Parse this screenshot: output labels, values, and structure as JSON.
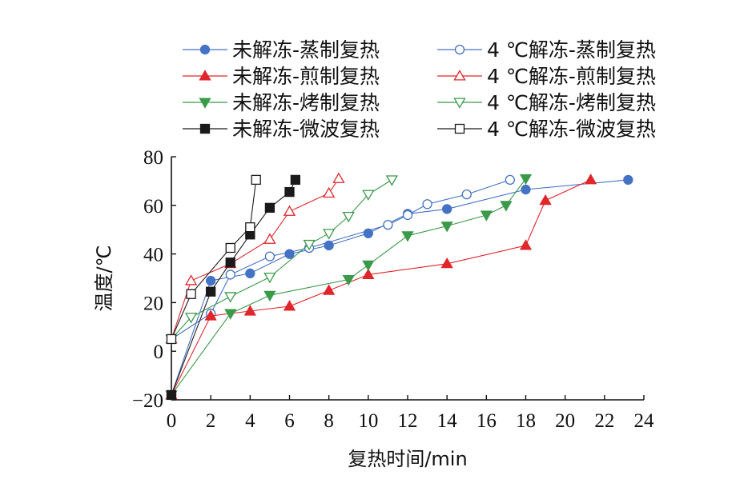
{
  "chart_data": {
    "type": "line",
    "title": "",
    "xlabel": "复热时间/min",
    "ylabel": "温度/℃",
    "xlim": [
      0,
      24
    ],
    "ylim": [
      -20,
      80
    ],
    "xticks": [
      0,
      2,
      4,
      6,
      8,
      10,
      12,
      14,
      16,
      18,
      20,
      22,
      24
    ],
    "yticks": [
      -20,
      0,
      20,
      40,
      60,
      80
    ],
    "ytick_labels": [
      "−20",
      "0",
      "20",
      "40",
      "60",
      "80"
    ],
    "grid": false,
    "legend_position": "top",
    "series": [
      {
        "name": "未解冻-蒸制复热",
        "color": "#4472c4",
        "marker": "circle",
        "filled": true,
        "x": [
          0,
          2,
          4,
          6,
          8,
          10,
          12,
          14,
          18,
          23.2
        ],
        "y": [
          -18,
          29,
          32,
          40,
          43.5,
          48.5,
          56.5,
          58.5,
          66.5,
          70.5
        ]
      },
      {
        "name": "4 ℃解冻-蒸制复热",
        "color": "#4472c4",
        "marker": "circle",
        "filled": false,
        "x": [
          0,
          2,
          3,
          5,
          7,
          11,
          12,
          13,
          15,
          17.2
        ],
        "y": [
          5,
          15.5,
          31.5,
          39,
          42.5,
          52,
          56,
          60.5,
          64.5,
          70.5
        ]
      },
      {
        "name": "未解冻-煎制复热",
        "color": "#e0262b",
        "marker": "triangle-up",
        "filled": true,
        "x": [
          0,
          2,
          4,
          6,
          8,
          10,
          14,
          18,
          19,
          21.3
        ],
        "y": [
          -18,
          14.5,
          16.5,
          18.5,
          25,
          31.5,
          36,
          43.5,
          62,
          70.5
        ]
      },
      {
        "name": "4 ℃解冻-煎制复热",
        "color": "#e0262b",
        "marker": "triangle-up",
        "filled": false,
        "x": [
          0,
          1,
          3,
          5,
          6,
          8,
          8.5
        ],
        "y": [
          5,
          29,
          36,
          46,
          57.5,
          65,
          71
        ]
      },
      {
        "name": "未解冻-烤制复热",
        "color": "#3a9a4a",
        "marker": "triangle-down",
        "filled": true,
        "x": [
          0,
          3,
          5,
          9,
          10,
          12,
          14,
          16,
          17,
          18
        ],
        "y": [
          -18,
          15.5,
          23,
          29.5,
          35.5,
          47.5,
          51.5,
          56,
          60,
          71
        ]
      },
      {
        "name": "4 ℃解冻-烤制复热",
        "color": "#3a9a4a",
        "marker": "triangle-down",
        "filled": false,
        "x": [
          0,
          1,
          3,
          5,
          7,
          8,
          9,
          10,
          11.2
        ],
        "y": [
          5,
          14,
          22.5,
          30.5,
          44,
          48.5,
          55.5,
          64.5,
          70.5
        ]
      },
      {
        "name": "未解冻-微波复热",
        "color": "#1a1a1a",
        "marker": "square",
        "filled": true,
        "x": [
          0,
          2,
          3,
          4,
          5,
          6,
          6.3
        ],
        "y": [
          -18,
          24.5,
          36.5,
          48,
          59,
          65.5,
          70.5
        ]
      },
      {
        "name": "4 ℃解冻-微波复热",
        "color": "#1a1a1a",
        "marker": "square",
        "filled": false,
        "x": [
          0,
          1,
          3,
          4,
          4.3
        ],
        "y": [
          5,
          23.5,
          42.5,
          51,
          70.5
        ]
      }
    ]
  }
}
